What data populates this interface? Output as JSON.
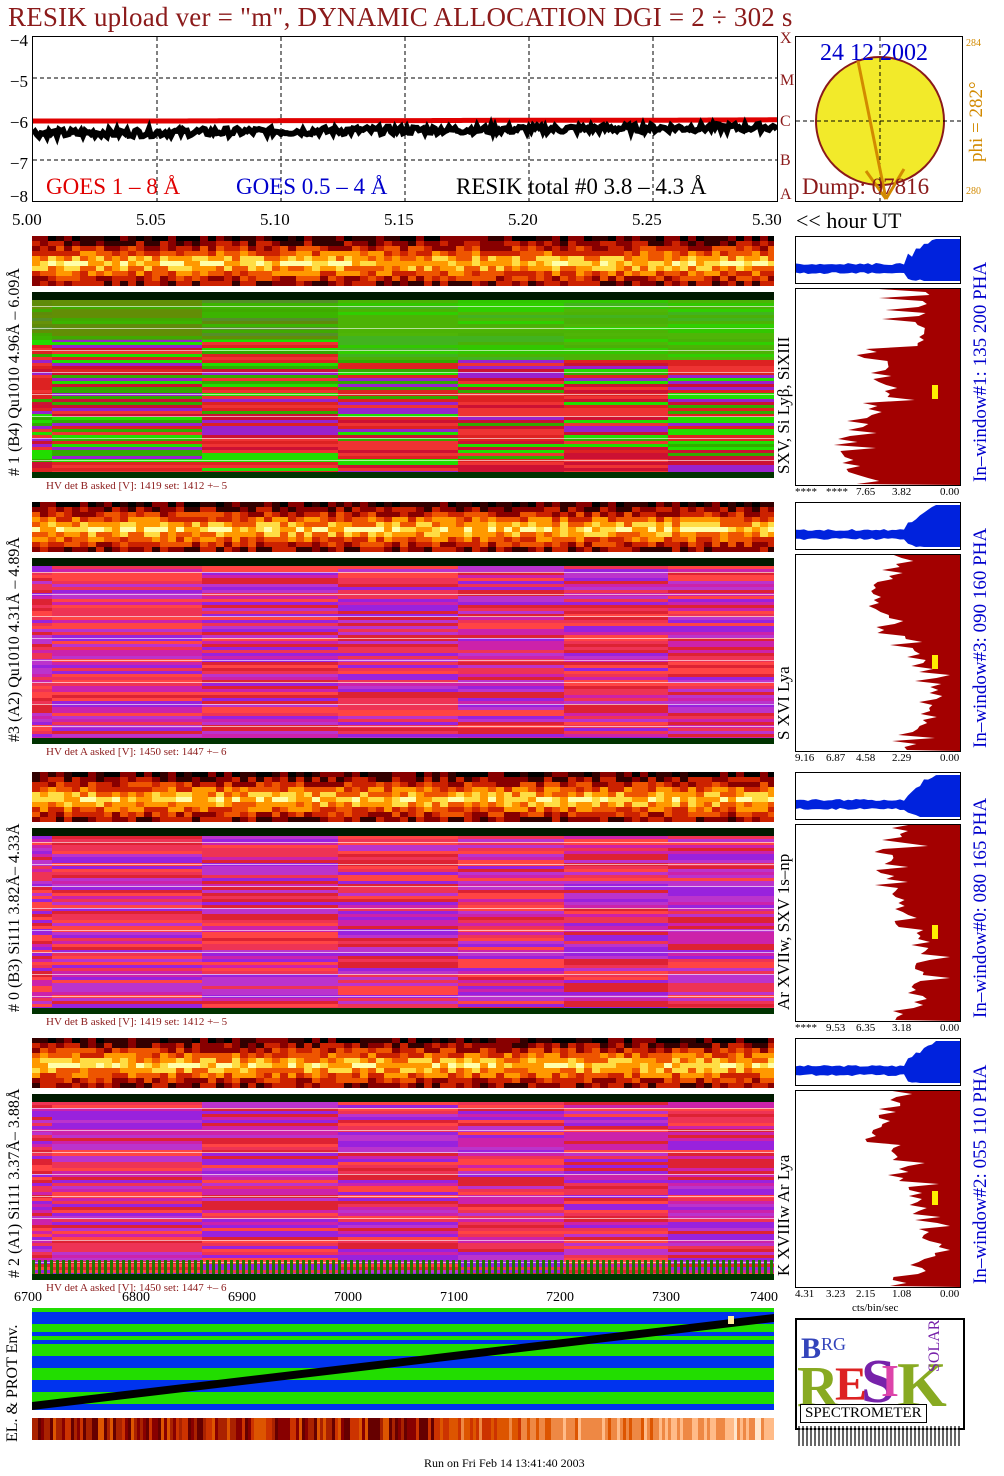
{
  "title": "RESIK upload ver = \"m\", DYNAMIC ALLOCATION  DGI =   2 ÷ 302 s",
  "goes": {
    "label_red": "GOES 1 – 8 Å",
    "label_blue": "GOES 0.5 – 4 Å",
    "label_black": "RESIK total #0  3.8 – 4.3 Å",
    "yticks": [
      "−4",
      "−5",
      "−6",
      "−7",
      "−8"
    ],
    "class_letters": [
      "X",
      "M",
      "C",
      "B",
      "A"
    ]
  },
  "sun": {
    "date": "24 12 2002",
    "dump": "Dump: 07816",
    "phi": "phi = 282°",
    "phi_top": "284",
    "phi_bottom": "280"
  },
  "time_axis": {
    "ticks": [
      "5.00",
      "5.05",
      "5.10",
      "5.15",
      "5.20",
      "5.25",
      "5.30"
    ],
    "unit": "<< hour UT"
  },
  "panels": [
    {
      "left_label": "# 1 (B4) Qu1010 4.96Å – 6.09Å",
      "line_label": "SXV, Si Lyβ, SiXIII",
      "hv": "HV det B asked [V]:  1419 set:  1412  +–   5",
      "window": "In–window#1:  135 200 PHA",
      "hist_ticks": [
        "****",
        "****",
        "7.65",
        "3.82",
        "0.00"
      ]
    },
    {
      "left_label": "#3 (A2) Qu1010  4.31Å – 4.89Å",
      "line_label": "S XVI Lya",
      "hv": "HV det A asked [V]:  1450 set:  1447  +–    6",
      "window": "In–window#3:  090 160 PHA",
      "hist_ticks": [
        "9.16",
        "6.87",
        "4.58",
        "2.29",
        "0.00"
      ]
    },
    {
      "left_label": "# 0 (B3) Si111  3.82Å– 4.33Å",
      "line_label": "Ar XVIIw,  SXV 1s–np",
      "hv": "HV det B asked [V]:  1419 set:  1412  +–    5",
      "window": "In–window#0:  080 165 PHA",
      "hist_ticks": [
        "****",
        "9.53",
        "6.35",
        "3.18",
        "0.00"
      ]
    },
    {
      "left_label": "# 2 (A1) Si111  3.37Å–  3.88Å",
      "line_label": "K XVIIIw   Ar Lya",
      "hv": "HV det A asked [V]:  1450 set:  1447  +–    6",
      "window": "In–window#2:  055 110 PHA",
      "hist_ticks": [
        "4.31",
        "3.23",
        "2.15",
        "1.08",
        "0.00"
      ],
      "hist_unit": "cts/bin/sec"
    }
  ],
  "orbit_axis": {
    "ticks": [
      "6700",
      "6800",
      "6900",
      "7000",
      "7100",
      "7200",
      "7300",
      "7400"
    ]
  },
  "env_label": "EL. & PROT Env.",
  "logo": {
    "big": "RESIK",
    "small_b": "B",
    "small_rg": "RG",
    "solar": "SOLAR",
    "caption": "SPECTROMETER"
  },
  "footer": "Run on Fri Feb 14 13:41:40 2003",
  "colors": {
    "title": "#8b1a1a",
    "goes_red": "#e00000",
    "goes_blue": "#0000cc",
    "sun_fill": "#f2ea2a",
    "hist_red": "#a30000",
    "hist_blue": "#0022dd",
    "env_blue": "#0033ee",
    "env_green": "#22dd00"
  },
  "chart_data": [
    {
      "type": "line",
      "title": "",
      "xlabel": "<< hour UT",
      "ylabel": "",
      "xlim": [
        5.0,
        5.3
      ],
      "ylim": [
        -8,
        -4
      ],
      "series": [
        {
          "name": "GOES 1 – 8 Å",
          "x": [
            5.0,
            5.05,
            5.1,
            5.15,
            5.2,
            5.25,
            5.3
          ],
          "values": [
            -6.05,
            -6.05,
            -6.04,
            -6.04,
            -6.03,
            -6.03,
            -6.02
          ]
        },
        {
          "name": "RESIK total #0  3.8 – 4.3 Å",
          "x": [
            5.0,
            5.05,
            5.1,
            5.15,
            5.2,
            5.25,
            5.3
          ],
          "values": [
            -6.35,
            -6.33,
            -6.3,
            -6.27,
            -6.25,
            -6.22,
            -6.2
          ]
        }
      ]
    },
    {
      "type": "heatmap",
      "title": "",
      "xlabel": "",
      "ylabel": "",
      "x": [
        "6700",
        "6800",
        "6900",
        "7000",
        "7100",
        "7200",
        "7300",
        "7400"
      ]
    }
  ]
}
